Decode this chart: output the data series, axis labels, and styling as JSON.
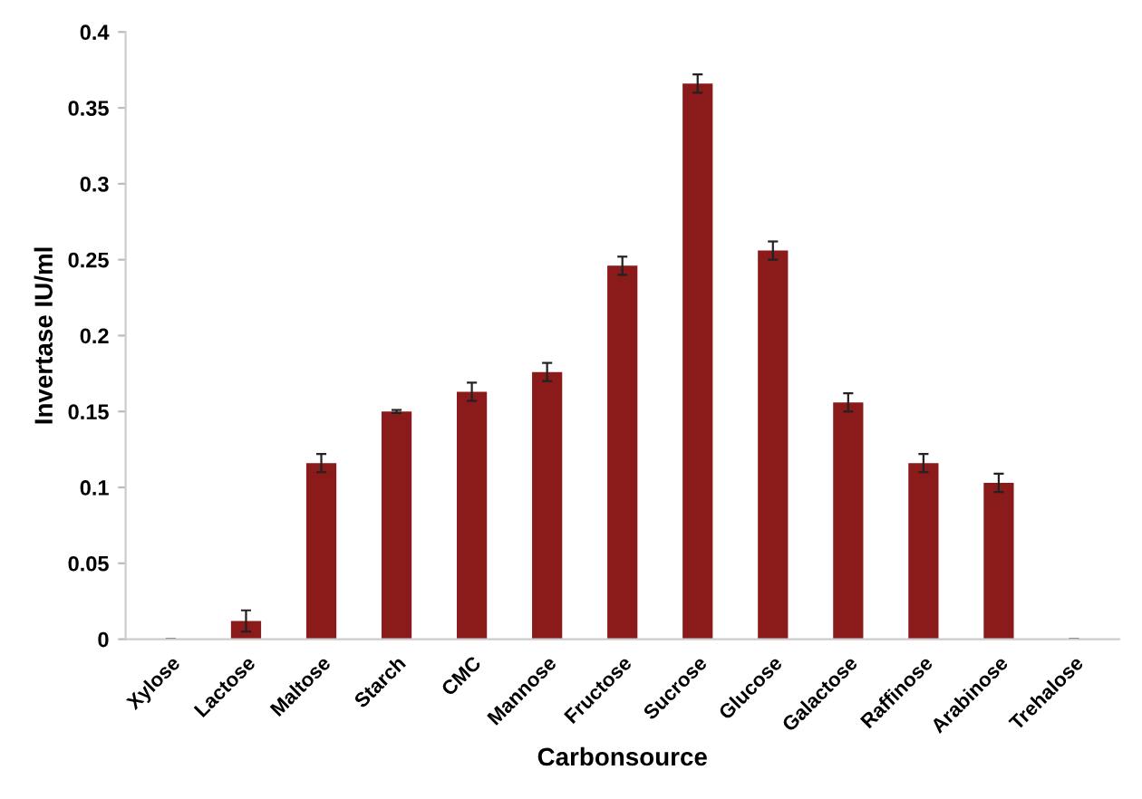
{
  "chart_data": {
    "type": "bar",
    "xlabel": "Carbonsource",
    "ylabel": "Invertase IU/ml",
    "categories": [
      "Xylose",
      "Lactose",
      "Maltose",
      "Starch",
      "CMC",
      "Mannose",
      "Fructose",
      "Sucrose",
      "Glucose",
      "Galactose",
      "Raffinose",
      "Arabinose",
      "Trehalose"
    ],
    "values": [
      0,
      0.012,
      0.116,
      0.15,
      0.163,
      0.176,
      0.246,
      0.366,
      0.256,
      0.156,
      0.116,
      0.103,
      0
    ],
    "errors": [
      null,
      0.007,
      0.006,
      0.001,
      0.006,
      0.006,
      0.006,
      0.006,
      0.006,
      0.006,
      0.006,
      0.006,
      null
    ],
    "color": "#8b1a1a",
    "ylim": [
      0,
      0.4
    ],
    "yticks": [
      {
        "value": 0,
        "label": "0"
      },
      0.05,
      0.1,
      0.15,
      0.2,
      0.25,
      0.3,
      0.35,
      0.4
    ],
    "grid": false,
    "legend": false
  }
}
